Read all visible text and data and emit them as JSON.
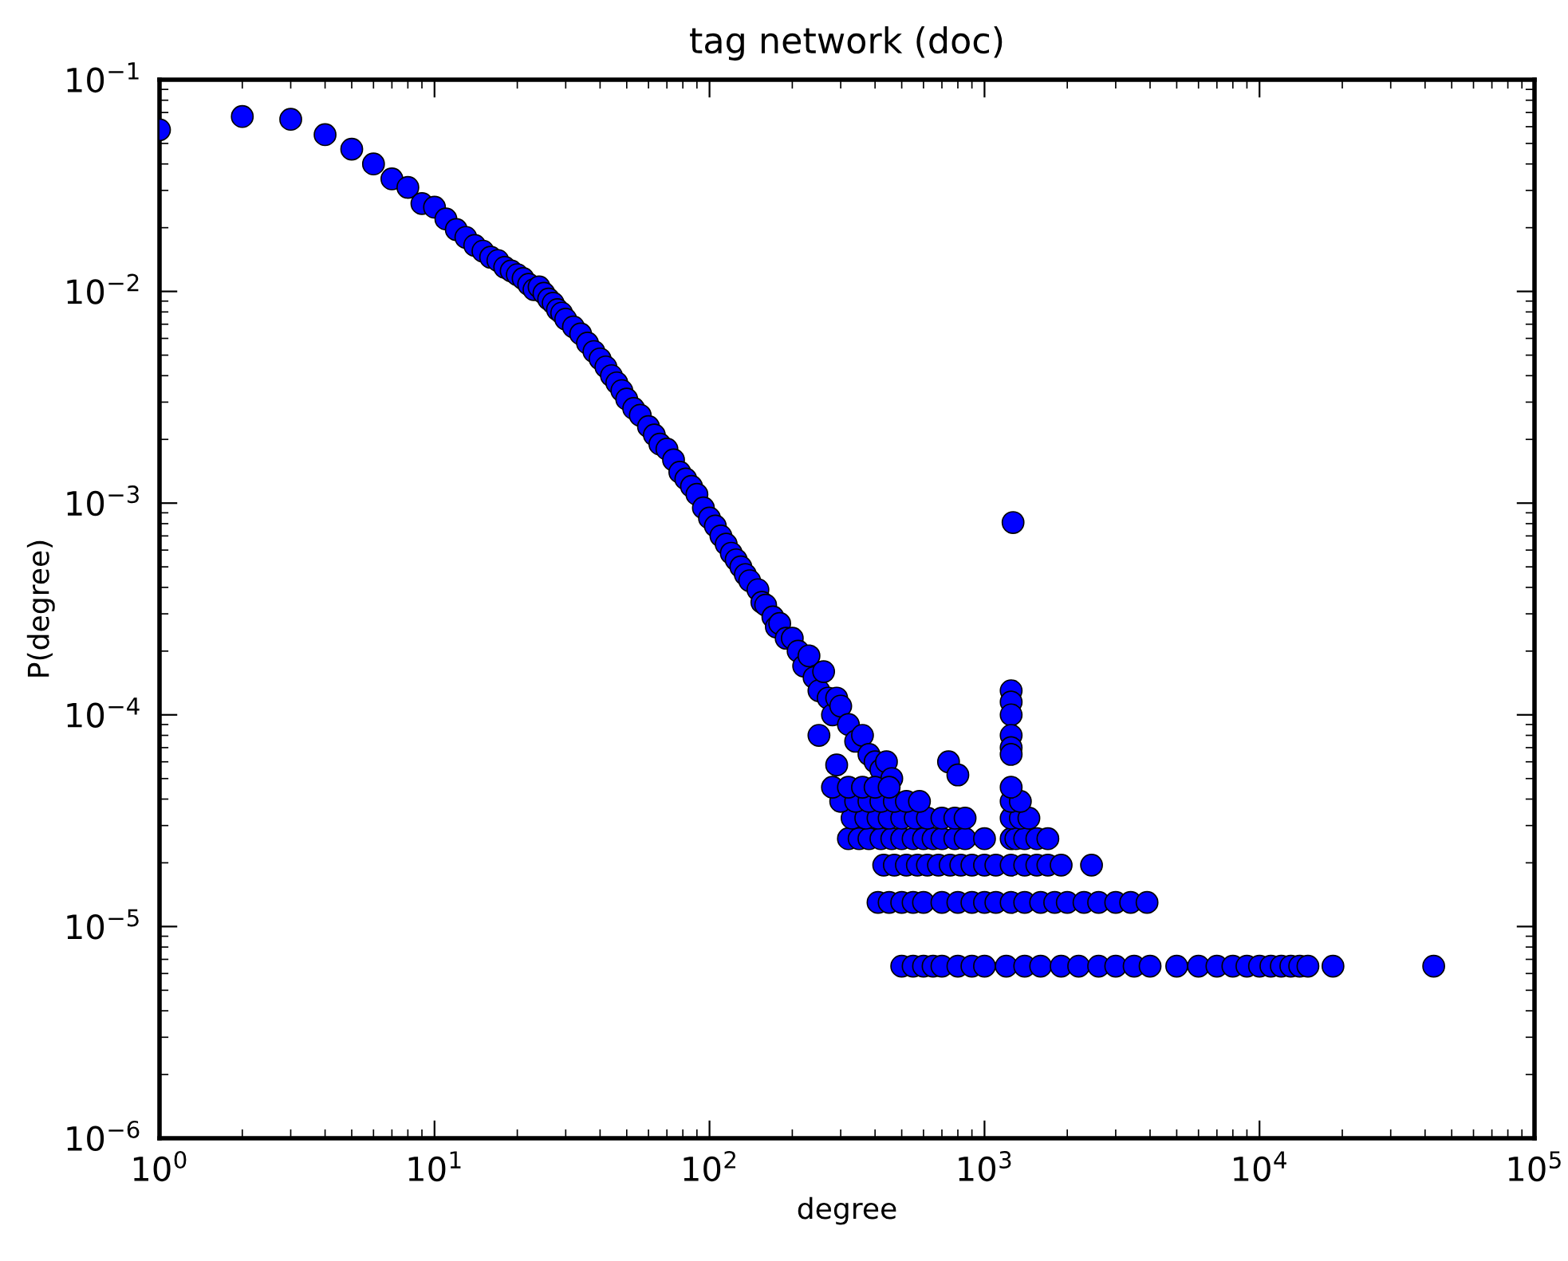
{
  "chart_data": {
    "type": "scatter",
    "title": "tag network (doc)",
    "xlabel": "degree",
    "ylabel": "P(degree)",
    "log": "xy",
    "grid": false,
    "marker": "circle",
    "xlim": [
      1,
      100000
    ],
    "ylim": [
      1e-06,
      0.1
    ],
    "xticks": [
      {
        "value": 1,
        "label": "10$^{0}$"
      },
      {
        "value": 10,
        "label": "10$^{1}$"
      },
      {
        "value": 100,
        "label": "10$^{2}$"
      },
      {
        "value": 1000,
        "label": "10$^{3}$"
      },
      {
        "value": 10000,
        "label": "10$^{4}$"
      },
      {
        "value": 100000,
        "label": "10$^{5}$"
      }
    ],
    "yticks": [
      {
        "value": 1e-06,
        "label": "10$^{−6}$"
      },
      {
        "value": 1e-05,
        "label": "10$^{−5}$"
      },
      {
        "value": 0.0001,
        "label": "10$^{−4}$"
      },
      {
        "value": 0.001,
        "label": "10$^{−3}$"
      },
      {
        "value": 0.01,
        "label": "10$^{−2}$"
      },
      {
        "value": 0.1,
        "label": "10$^{−1}$"
      }
    ],
    "series": [
      {
        "color": "#0000ff",
        "x": [
          1,
          2,
          3,
          4,
          5,
          6,
          7,
          8,
          9,
          10,
          11,
          12,
          13,
          14,
          15,
          16,
          17,
          18,
          19,
          20,
          21,
          22,
          23,
          24,
          25,
          26,
          27,
          28,
          29,
          30,
          32,
          34,
          36,
          38,
          40,
          42,
          44,
          46,
          48,
          50,
          53,
          56,
          60,
          63,
          66,
          70,
          74,
          78,
          82,
          86,
          90,
          95,
          100,
          105,
          110,
          115,
          120,
          125,
          130,
          135,
          140,
          150,
          155,
          160,
          170,
          175,
          180,
          190,
          200,
          210,
          220,
          230,
          240,
          250,
          260,
          270,
          280,
          290,
          300,
          320,
          340,
          360,
          380,
          400,
          420,
          440,
          460,
          290,
          250,
          740,
          800,
          1250,
          1250,
          1250,
          1250,
          1250,
          1250,
          1270,
          500,
          550,
          600,
          650,
          700,
          800,
          900,
          1000,
          1200,
          1400,
          1600,
          1900,
          2200,
          2600,
          3000,
          3500,
          4000,
          5000,
          6000,
          7000,
          8000,
          9000,
          10000,
          11000,
          12000,
          13000,
          14000,
          15000,
          18500,
          43000,
          410,
          450,
          500,
          550,
          600,
          700,
          800,
          900,
          1000,
          1100,
          1250,
          1400,
          1600,
          1800,
          2000,
          2300,
          2600,
          3000,
          3400,
          3900,
          430,
          470,
          520,
          570,
          620,
          680,
          750,
          820,
          900,
          1000,
          1100,
          1250,
          1400,
          1550,
          1700,
          1900,
          2450,
          320,
          350,
          380,
          420,
          460,
          500,
          550,
          600,
          650,
          700,
          780,
          850,
          1000,
          1250,
          1300,
          1400,
          1550,
          1700,
          330,
          370,
          410,
          450,
          500,
          560,
          620,
          700,
          780,
          850,
          1250,
          1350,
          1450,
          300,
          340,
          380,
          420,
          470,
          520,
          580,
          1250,
          1350,
          280,
          320,
          360,
          400,
          450,
          1250
        ],
        "values": [
          0.058,
          0.067,
          0.065,
          0.055,
          0.047,
          0.04,
          0.034,
          0.031,
          0.026,
          0.025,
          0.022,
          0.0196,
          0.018,
          0.0165,
          0.0155,
          0.0145,
          0.014,
          0.013,
          0.0125,
          0.012,
          0.0115,
          0.0108,
          0.0102,
          0.0105,
          0.0098,
          0.0092,
          0.0088,
          0.0082,
          0.0079,
          0.0074,
          0.0068,
          0.0063,
          0.0057,
          0.0052,
          0.0048,
          0.0044,
          0.004,
          0.0037,
          0.0034,
          0.0031,
          0.0028,
          0.0026,
          0.0023,
          0.0021,
          0.0019,
          0.0018,
          0.0016,
          0.0014,
          0.0013,
          0.0012,
          0.0011,
          0.00095,
          0.00085,
          0.00078,
          0.0007,
          0.00064,
          0.00058,
          0.00054,
          0.0005,
          0.00046,
          0.00043,
          0.00039,
          0.00034,
          0.00033,
          0.00029,
          0.00026,
          0.00027,
          0.00023,
          0.00023,
          0.0002,
          0.00017,
          0.00019,
          0.00015,
          0.00013,
          0.00016,
          0.00012,
          0.0001,
          0.00012,
          0.00011,
          9e-05,
          7.5e-05,
          8e-05,
          6.5e-05,
          6e-05,
          5.5e-05,
          6e-05,
          5e-05,
          5.8e-05,
          8e-05,
          6e-05,
          5.2e-05,
          0.00013,
          0.000115,
          0.0001,
          8e-05,
          7e-05,
          6.5e-05,
          0.00081,
          6.5e-06,
          6.5e-06,
          6.5e-06,
          6.5e-06,
          6.5e-06,
          6.5e-06,
          6.5e-06,
          6.5e-06,
          6.5e-06,
          6.5e-06,
          6.5e-06,
          6.5e-06,
          6.5e-06,
          6.5e-06,
          6.5e-06,
          6.5e-06,
          6.5e-06,
          6.5e-06,
          6.5e-06,
          6.5e-06,
          6.5e-06,
          6.5e-06,
          6.5e-06,
          6.5e-06,
          6.5e-06,
          6.5e-06,
          6.5e-06,
          6.5e-06,
          6.5e-06,
          6.5e-06,
          1.3e-05,
          1.3e-05,
          1.3e-05,
          1.3e-05,
          1.3e-05,
          1.3e-05,
          1.3e-05,
          1.3e-05,
          1.3e-05,
          1.3e-05,
          1.3e-05,
          1.3e-05,
          1.3e-05,
          1.3e-05,
          1.3e-05,
          1.3e-05,
          1.3e-05,
          1.3e-05,
          1.3e-05,
          1.3e-05,
          1.95e-05,
          1.95e-05,
          1.95e-05,
          1.95e-05,
          1.95e-05,
          1.95e-05,
          1.95e-05,
          1.95e-05,
          1.95e-05,
          1.95e-05,
          1.95e-05,
          1.95e-05,
          1.95e-05,
          1.95e-05,
          1.95e-05,
          1.95e-05,
          1.95e-05,
          2.6e-05,
          2.6e-05,
          2.6e-05,
          2.6e-05,
          2.6e-05,
          2.6e-05,
          2.6e-05,
          2.6e-05,
          2.6e-05,
          2.6e-05,
          2.6e-05,
          2.6e-05,
          2.6e-05,
          2.6e-05,
          2.6e-05,
          2.6e-05,
          2.6e-05,
          2.6e-05,
          3.25e-05,
          3.25e-05,
          3.25e-05,
          3.25e-05,
          3.25e-05,
          3.25e-05,
          3.25e-05,
          3.25e-05,
          3.25e-05,
          3.25e-05,
          3.25e-05,
          3.25e-05,
          3.25e-05,
          3.9e-05,
          3.9e-05,
          3.9e-05,
          3.9e-05,
          3.9e-05,
          3.9e-05,
          3.9e-05,
          3.9e-05,
          3.9e-05,
          4.55e-05,
          4.55e-05,
          4.55e-05,
          4.55e-05,
          4.55e-05,
          4.55e-05
        ]
      }
    ]
  }
}
